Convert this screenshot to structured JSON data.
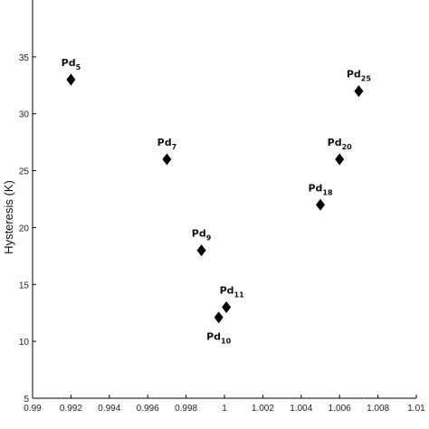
{
  "chart_data": {
    "type": "scatter",
    "ylabel": "Hysteresis (K)",
    "xlim": [
      0.99,
      1.01
    ],
    "ylim": [
      5,
      40
    ],
    "x_ticks": [
      0.99,
      0.992,
      0.994,
      0.996,
      0.998,
      1,
      1.002,
      1.004,
      1.006,
      1.008,
      1.01
    ],
    "x_tick_labels": [
      "0.99",
      "0.992",
      "0.994",
      "0.996",
      "0.998",
      "1",
      "1.002",
      "1.004",
      "1.006",
      "1.008",
      "1.01"
    ],
    "y_ticks": [
      5,
      10,
      15,
      20,
      25,
      30,
      35
    ],
    "y_tick_labels": [
      "5",
      "10",
      "15",
      "20",
      "25",
      "30",
      "35"
    ],
    "marker": "diamond",
    "marker_color": "#000000",
    "grid": false,
    "points": [
      {
        "x": 0.992,
        "y": 33,
        "label": "Pd",
        "sub": "5",
        "label_pos": "above"
      },
      {
        "x": 0.997,
        "y": 26,
        "label": "Pd",
        "sub": "7",
        "label_pos": "above"
      },
      {
        "x": 0.9988,
        "y": 18,
        "label": "Pd",
        "sub": "9",
        "label_pos": "above"
      },
      {
        "x": 0.9997,
        "y": 12.1,
        "label": "Pd",
        "sub": "10",
        "label_pos": "below"
      },
      {
        "x": 1.0001,
        "y": 13,
        "label": "Pd",
        "sub": "11",
        "label_pos": "above-right"
      },
      {
        "x": 1.005,
        "y": 22,
        "label": "Pd",
        "sub": "18",
        "label_pos": "above"
      },
      {
        "x": 1.006,
        "y": 26,
        "label": "Pd",
        "sub": "20",
        "label_pos": "above"
      },
      {
        "x": 1.007,
        "y": 32,
        "label": "Pd",
        "sub": "25",
        "label_pos": "above"
      }
    ]
  }
}
